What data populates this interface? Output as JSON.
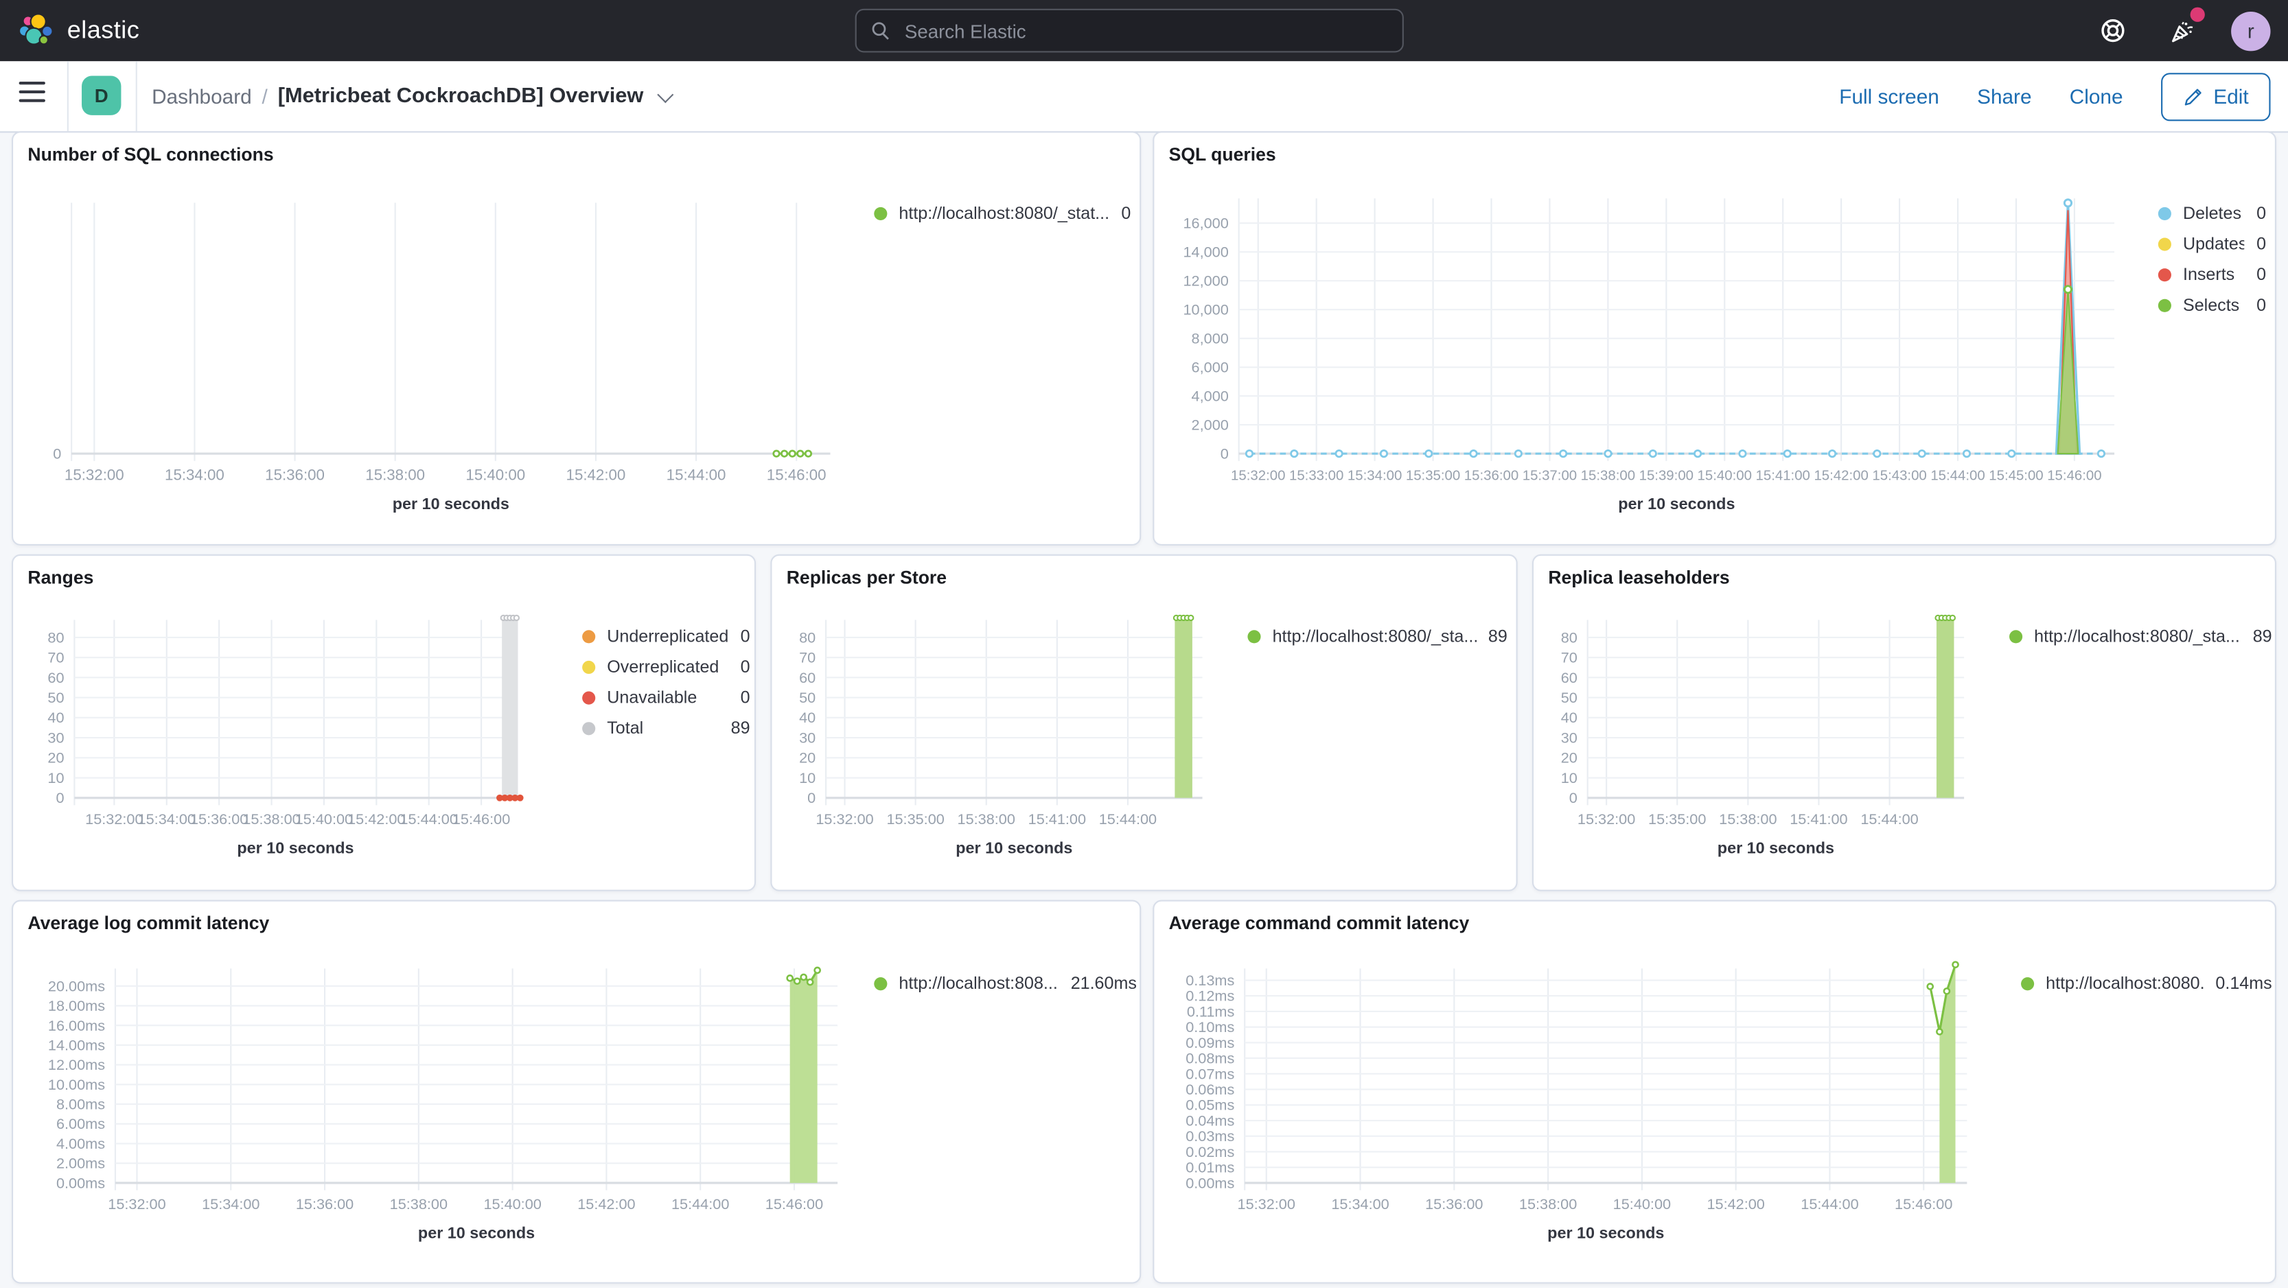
{
  "header": {
    "brand": "elastic",
    "search_placeholder": "Search Elastic",
    "avatar_initial": "r"
  },
  "toolbar": {
    "space_badge": "D",
    "breadcrumb_root": "Dashboard",
    "breadcrumb_separator": "/",
    "title": "[Metricbeat CockroachDB] Overview",
    "actions": [
      "Full screen",
      "Share",
      "Clone"
    ],
    "edit_label": "Edit"
  },
  "colors": {
    "header_bg": "#25262c",
    "link_blue": "#1c6cb1",
    "badge_teal": "#4ec3a8",
    "notification_pink": "#dc3a74",
    "avatar_lavender": "#cbb1e6",
    "panel_border": "#d8dee9",
    "axis_text": "#98a1ad",
    "series_green": "#7cc043",
    "series_blue": "#7fc9e8",
    "series_yellow": "#f1d64b",
    "series_red": "#e4574b",
    "series_orange": "#ed9b43",
    "series_grey": "#c6c8cc",
    "bar_green_fill": "#b7da8c",
    "bar_grey_fill": "#e0e2e4"
  },
  "chart_data": [
    {
      "type": "line",
      "title": "Number of SQL connections",
      "xlabel": "per 10 seconds",
      "x_ticks": [
        "15:32:00",
        "15:34:00",
        "15:36:00",
        "15:38:00",
        "15:40:00",
        "15:42:00",
        "15:44:00",
        "15:46:00"
      ],
      "y_ticks": [
        "0"
      ],
      "ylim": [
        0,
        1
      ],
      "legend_position": "right",
      "legend": [
        {
          "label": "http://localhost:8080/_stat...",
          "value": "0",
          "color": "#7cc043"
        }
      ],
      "series_values": [
        0,
        0,
        0,
        0,
        0
      ],
      "note": "flat green dashed segment at 0 near 15:46:00"
    },
    {
      "type": "area",
      "title": "SQL queries",
      "xlabel": "per 10 seconds",
      "x_ticks": [
        "15:32:00",
        "15:33:00",
        "15:34:00",
        "15:35:00",
        "15:36:00",
        "15:37:00",
        "15:38:00",
        "15:39:00",
        "15:40:00",
        "15:41:00",
        "15:42:00",
        "15:43:00",
        "15:44:00",
        "15:45:00",
        "15:46:00"
      ],
      "y_ticks": [
        "0",
        "2,000",
        "4,000",
        "6,000",
        "8,000",
        "10,000",
        "12,000",
        "14,000",
        "16,000"
      ],
      "ylim": [
        0,
        17700
      ],
      "legend_position": "right",
      "legend": [
        {
          "label": "Deletes",
          "value": "0",
          "color": "#7fc9e8"
        },
        {
          "label": "Updates",
          "value": "0",
          "color": "#f1d64b"
        },
        {
          "label": "Inserts",
          "value": "0",
          "color": "#e4574b"
        },
        {
          "label": "Selects",
          "value": "0",
          "color": "#7cc043"
        }
      ],
      "baseline_value": 0,
      "spike": {
        "deletes": 17400,
        "inserts": 16900,
        "selects": 11400
      }
    },
    {
      "type": "bar",
      "title": "Ranges",
      "xlabel": "per 10 seconds",
      "x_ticks": [
        "15:32:00",
        "15:34:00",
        "15:36:00",
        "15:38:00",
        "15:40:00",
        "15:42:00",
        "15:44:00",
        "15:46:00"
      ],
      "y_ticks": [
        "0",
        "10",
        "20",
        "30",
        "40",
        "50",
        "60",
        "70",
        "80"
      ],
      "ylim": [
        0,
        90
      ],
      "legend_position": "right",
      "legend": [
        {
          "label": "Underreplicated",
          "value": "0",
          "color": "#ed9b43"
        },
        {
          "label": "Overreplicated",
          "value": "0",
          "color": "#f1d64b"
        },
        {
          "label": "Unavailable",
          "value": "0",
          "color": "#e4574b"
        },
        {
          "label": "Total",
          "value": "89",
          "color": "#c6c8cc"
        }
      ],
      "bar_value": 89,
      "unavailable_dots_value": 0
    },
    {
      "type": "bar",
      "title": "Replicas per Store",
      "xlabel": "per 10 seconds",
      "x_ticks": [
        "15:32:00",
        "15:35:00",
        "15:38:00",
        "15:41:00",
        "15:44:00"
      ],
      "y_ticks": [
        "0",
        "10",
        "20",
        "30",
        "40",
        "50",
        "60",
        "70",
        "80"
      ],
      "ylim": [
        0,
        90
      ],
      "legend_position": "right",
      "legend": [
        {
          "label": "http://localhost:8080/_sta...",
          "value": "89",
          "color": "#7cc043"
        }
      ],
      "bar_value": 89
    },
    {
      "type": "bar",
      "title": "Replica leaseholders",
      "xlabel": "per 10 seconds",
      "x_ticks": [
        "15:32:00",
        "15:35:00",
        "15:38:00",
        "15:41:00",
        "15:44:00"
      ],
      "y_ticks": [
        "0",
        "10",
        "20",
        "30",
        "40",
        "50",
        "60",
        "70",
        "80"
      ],
      "ylim": [
        0,
        90
      ],
      "legend_position": "right",
      "legend": [
        {
          "label": "http://localhost:8080/_sta...",
          "value": "89",
          "color": "#7cc043"
        }
      ],
      "bar_value": 89
    },
    {
      "type": "area",
      "title": "Average log commit latency",
      "xlabel": "per 10 seconds",
      "x_ticks": [
        "15:32:00",
        "15:34:00",
        "15:36:00",
        "15:38:00",
        "15:40:00",
        "15:42:00",
        "15:44:00",
        "15:46:00"
      ],
      "y_ticks": [
        "0.00ms",
        "2.00ms",
        "4.00ms",
        "6.00ms",
        "8.00ms",
        "10.00ms",
        "12.00ms",
        "14.00ms",
        "16.00ms",
        "18.00ms",
        "20.00ms"
      ],
      "ylim": [
        0,
        21.8
      ],
      "legend_position": "right",
      "legend": [
        {
          "label": "http://localhost:808...",
          "value": "21.60ms",
          "color": "#7cc043"
        }
      ],
      "series_values": [
        20.8,
        20.5,
        20.9,
        20.4,
        21.6
      ]
    },
    {
      "type": "line",
      "title": "Average command commit latency",
      "xlabel": "per 10 seconds",
      "x_ticks": [
        "15:32:00",
        "15:34:00",
        "15:36:00",
        "15:38:00",
        "15:40:00",
        "15:42:00",
        "15:44:00",
        "15:46:00"
      ],
      "y_ticks": [
        "0.00ms",
        "0.01ms",
        "0.02ms",
        "0.03ms",
        "0.04ms",
        "0.05ms",
        "0.06ms",
        "0.07ms",
        "0.08ms",
        "0.09ms",
        "0.10ms",
        "0.11ms",
        "0.12ms",
        "0.13ms"
      ],
      "ylim": [
        0,
        0.14
      ],
      "legend_position": "right",
      "legend": [
        {
          "label": "http://localhost:8080...",
          "value": "0.14ms",
          "color": "#7cc043"
        }
      ],
      "series_values": [
        0.126,
        0.097,
        0.123,
        0.14
      ]
    }
  ]
}
